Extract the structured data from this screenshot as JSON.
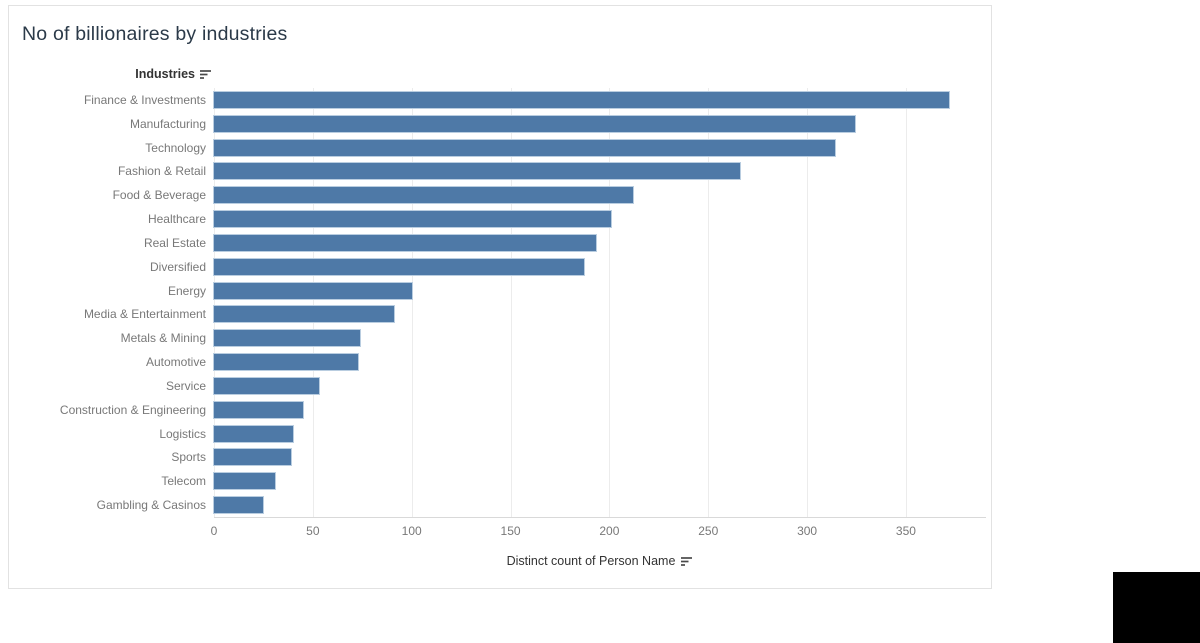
{
  "title": "No of billionaires by industries",
  "chart_data": {
    "type": "bar",
    "orientation": "horizontal",
    "title": "No of billionaires by industries",
    "column_header": "Industries",
    "xlabel": "Distinct count of Person Name",
    "categories": [
      "Finance & Investments",
      "Manufacturing",
      "Technology",
      "Fashion & Retail",
      "Food & Beverage",
      "Healthcare",
      "Real Estate",
      "Diversified",
      "Energy",
      "Media & Entertainment",
      "Metals & Mining",
      "Automotive",
      "Service",
      "Construction & Engineering",
      "Logistics",
      "Sports",
      "Telecom",
      "Gambling & Casinos"
    ],
    "values": [
      372,
      324,
      314,
      266,
      212,
      201,
      193,
      187,
      100,
      91,
      74,
      73,
      53,
      45,
      40,
      39,
      31,
      25
    ],
    "xticks": [
      0,
      50,
      100,
      150,
      200,
      250,
      300,
      350
    ],
    "xlim": [
      0,
      390
    ],
    "grid": true,
    "legend_position": "none",
    "sort": "descending"
  },
  "icons": {
    "header_sort": "sort-descending-icon",
    "axis_sort": "sort-descending-icon"
  },
  "colors": {
    "bar": "#4e79a7",
    "bar_halo": "#b9cde0",
    "title_text": "#2b3a49",
    "header_text": "#333333",
    "label_text": "#787878",
    "tick_text": "#787878",
    "gridline": "#ececec",
    "axis_line": "#d9d9d9",
    "card_border": "#e2e2e2",
    "overlay_box": "#000000"
  }
}
